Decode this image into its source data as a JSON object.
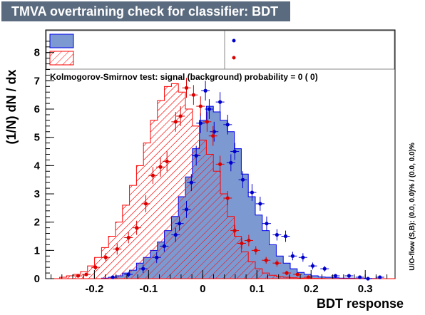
{
  "title": "TMVA overtraining check for classifier: BDT",
  "colors": {
    "title_bg": "#5b6b7f",
    "title_text": "#ffffff",
    "signal_fill": "#7d99d1",
    "signal_line": "#0000ee",
    "signal_points": "#0000cc",
    "background_line": "#ff0000",
    "background_points": "#dd0000"
  },
  "ks_text": "Kolmogorov-Smirnov test: signal (background) probability =     0 (    0)",
  "side_label": "U/O-flow (S,B): (0.0, 0.0)% / (0.0, 0.0)%",
  "chart_data": {
    "type": "histogram",
    "xlabel": "BDT response",
    "ylabel": "(1/N) dN / dx",
    "xlim": [
      -0.29,
      0.355
    ],
    "ylim": [
      0,
      8.8
    ],
    "xticks": [
      -0.2,
      -0.1,
      0,
      0.1,
      0.2,
      0.3
    ],
    "xtick_labels": [
      "-0.2",
      "-0.1",
      "0",
      "0.1",
      "0.2",
      "0.3"
    ],
    "yticks": [
      0,
      1,
      2,
      3,
      4,
      5,
      6,
      7,
      8
    ],
    "ytick_labels": [
      "0",
      "1",
      "2",
      "3",
      "4",
      "5",
      "6",
      "7",
      "8"
    ],
    "bin_edges": [
      -0.29,
      -0.2771,
      -0.2642,
      -0.2513,
      -0.2384,
      -0.2255,
      -0.2126,
      -0.1997,
      -0.1868,
      -0.1739,
      -0.161,
      -0.1481,
      -0.1352,
      -0.1223,
      -0.1094,
      -0.0965,
      -0.0836,
      -0.0707,
      -0.0578,
      -0.0449,
      -0.032,
      -0.0191,
      -0.0062,
      0.0067,
      0.0196,
      0.0325,
      0.0454,
      0.0583,
      0.0712,
      0.0841,
      0.097,
      0.1099,
      0.1228,
      0.1357,
      0.1486,
      0.1615,
      0.1744,
      0.1873,
      0.2002,
      0.2131,
      0.226,
      0.2389,
      0.2518,
      0.2647,
      0.2776,
      0.2905,
      0.3034,
      0.3163,
      0.3292,
      0.3421,
      0.355
    ],
    "series": [
      {
        "kind": "signal_train",
        "values": [
          0,
          0,
          0,
          0,
          0,
          0,
          0,
          0,
          0.02,
          0.05,
          0.1,
          0.2,
          0.3,
          0.55,
          0.75,
          1.0,
          1.3,
          1.7,
          2.2,
          2.9,
          3.6,
          4.6,
          5.6,
          6.1,
          5.9,
          5.6,
          5.2,
          4.6,
          3.7,
          2.9,
          2.25,
          1.7,
          1.2,
          0.8,
          0.55,
          0.35,
          0.22,
          0.15,
          0.1,
          0.06,
          0.05,
          0.03,
          0.02,
          0.02,
          0.01,
          0.01,
          0.005,
          0.005,
          0,
          0
        ]
      },
      {
        "kind": "background_train",
        "values": [
          0,
          0,
          0.05,
          0.1,
          0.15,
          0.25,
          0.45,
          0.75,
          1.1,
          1.5,
          2.0,
          2.6,
          3.3,
          4.0,
          4.8,
          5.6,
          6.3,
          6.8,
          6.9,
          6.6,
          6.0,
          5.4,
          4.9,
          4.4,
          3.8,
          3.0,
          2.2,
          1.5,
          0.95,
          0.6,
          0.35,
          0.2,
          0.12,
          0.07,
          0.05,
          0.03,
          0.02,
          0.01,
          0.01,
          0.005,
          0,
          0,
          0,
          0,
          0,
          0,
          0,
          0,
          0,
          0
        ]
      },
      {
        "kind": "signal_test_points",
        "x": [
          -0.166,
          -0.137,
          -0.11,
          -0.085,
          -0.071,
          -0.05,
          -0.043,
          -0.03,
          -0.021,
          -0.012,
          -0.004,
          0.005,
          0.012,
          0.021,
          0.032,
          0.046,
          0.052,
          0.059,
          0.074,
          0.091,
          0.106,
          0.118,
          0.137,
          0.153,
          0.166,
          0.185,
          0.203,
          0.225,
          0.245,
          0.27,
          0.29,
          0.305,
          0.327
        ],
        "y": [
          0.05,
          0.15,
          0.35,
          0.75,
          1.15,
          1.55,
          1.95,
          2.45,
          3.4,
          4.35,
          5.5,
          6.65,
          6.0,
          5.2,
          6.25,
          5.45,
          4.1,
          4.5,
          3.5,
          3.05,
          2.65,
          1.95,
          1.55,
          1.5,
          0.8,
          0.75,
          0.45,
          0.35,
          0.1,
          0.1,
          0.05,
          0.0,
          0.05
        ],
        "yerr": [
          0.05,
          0.1,
          0.15,
          0.2,
          0.2,
          0.25,
          0.25,
          0.3,
          0.3,
          0.35,
          0.35,
          0.35,
          0.35,
          0.35,
          0.35,
          0.35,
          0.3,
          0.3,
          0.3,
          0.3,
          0.25,
          0.25,
          0.2,
          0.2,
          0.15,
          0.15,
          0.12,
          0.1,
          0.06,
          0.06,
          0.04,
          0.02,
          0.04
        ]
      },
      {
        "kind": "background_test_points",
        "x": [
          -0.23,
          -0.215,
          -0.198,
          -0.179,
          -0.158,
          -0.137,
          -0.122,
          -0.105,
          -0.092,
          -0.078,
          -0.066,
          -0.05,
          -0.041,
          -0.03,
          -0.017,
          -0.004,
          0.008,
          0.019,
          0.032,
          0.046,
          0.059,
          0.072,
          0.085,
          0.098,
          0.117,
          0.137,
          0.155,
          0.175,
          0.195
        ],
        "y": [
          0.1,
          0.15,
          0.4,
          0.75,
          1.05,
          1.45,
          1.8,
          2.65,
          3.65,
          3.95,
          4.15,
          5.55,
          5.75,
          6.75,
          6.5,
          6.1,
          5.55,
          5.05,
          4.05,
          2.85,
          1.7,
          1.25,
          1.35,
          1.0,
          0.65,
          0.55,
          0.2,
          0.15,
          0.05
        ],
        "yerr": [
          0.05,
          0.06,
          0.1,
          0.15,
          0.2,
          0.2,
          0.25,
          0.3,
          0.3,
          0.35,
          0.35,
          0.35,
          0.35,
          0.35,
          0.35,
          0.35,
          0.35,
          0.35,
          0.3,
          0.25,
          0.2,
          0.2,
          0.2,
          0.15,
          0.12,
          0.12,
          0.08,
          0.06,
          0.04
        ]
      }
    ]
  }
}
